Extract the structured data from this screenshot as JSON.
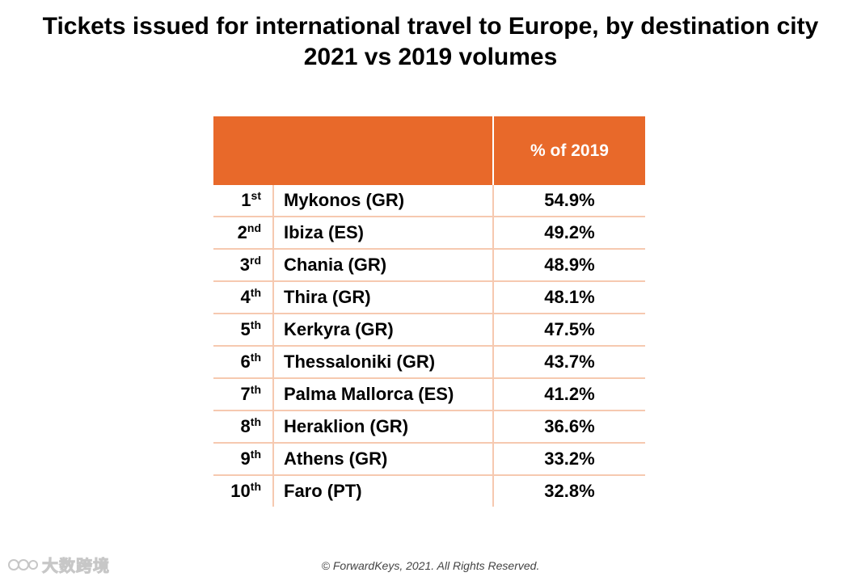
{
  "chart_data": {
    "type": "table",
    "title": "Tickets issued for international travel to Europe, by destination city",
    "subtitle": "2021 vs 2019 volumes",
    "columns": [
      "",
      "% of 2019"
    ],
    "rows": [
      {
        "rank": "1",
        "suffix": "st",
        "city": "Mykonos (GR)",
        "value_label": "54.9%",
        "value": 54.9
      },
      {
        "rank": "2",
        "suffix": "nd",
        "city": "Ibiza (ES)",
        "value_label": "49.2%",
        "value": 49.2
      },
      {
        "rank": "3",
        "suffix": "rd",
        "city": "Chania (GR)",
        "value_label": "48.9%",
        "value": 48.9
      },
      {
        "rank": "4",
        "suffix": "th",
        "city": "Thira (GR)",
        "value_label": "48.1%",
        "value": 48.1
      },
      {
        "rank": "5",
        "suffix": "th",
        "city": "Kerkyra (GR)",
        "value_label": "47.5%",
        "value": 47.5
      },
      {
        "rank": "6",
        "suffix": "th",
        "city": "Thessaloniki (GR)",
        "value_label": "43.7%",
        "value": 43.7
      },
      {
        "rank": "7",
        "suffix": "th",
        "city": "Palma Mallorca (ES)",
        "value_label": "41.2%",
        "value": 41.2
      },
      {
        "rank": "8",
        "suffix": "th",
        "city": "Heraklion (GR)",
        "value_label": "36.6%",
        "value": 36.6
      },
      {
        "rank": "9",
        "suffix": "th",
        "city": "Athens (GR)",
        "value_label": "33.2%",
        "value": 33.2
      },
      {
        "rank": "10",
        "suffix": "th",
        "city": "Faro (PT)",
        "value_label": "32.8%",
        "value": 32.8
      }
    ]
  },
  "footer": "© ForwardKeys, 2021. All Rights Reserved.",
  "watermark": {
    "text": "大数跨境",
    "icon": "watermark-logo-icon"
  },
  "colors": {
    "header_bg": "#e8692a",
    "header_text": "#ffffff",
    "row_divider": "#f6c9b0"
  }
}
